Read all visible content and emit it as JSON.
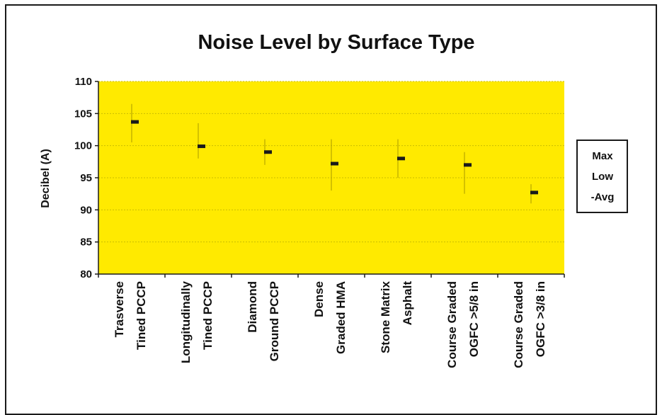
{
  "chart_data": {
    "type": "stock",
    "title": "Noise Level by Surface Type",
    "ylabel": "Decibel (A)",
    "xlabel": "",
    "ylim": [
      80,
      110
    ],
    "yticks": [
      80,
      85,
      90,
      95,
      100,
      105,
      110
    ],
    "grid": true,
    "legend_position": "right",
    "legend": [
      "Max",
      "Low",
      "-Avg"
    ],
    "colors": {
      "plot_background": "#ffea00",
      "range_line": "#b8a800",
      "avg_mark": "#1a1a1a",
      "grid": "#c9bc00"
    },
    "categories": [
      {
        "lines": [
          "Trasverse",
          "Tined PCCP"
        ],
        "max": 106.5,
        "low": 100.5,
        "avg": 103.7
      },
      {
        "lines": [
          "Longitudinally",
          "Tined PCCP"
        ],
        "max": 103.5,
        "low": 98.0,
        "avg": 99.9
      },
      {
        "lines": [
          "Diamond",
          "Ground PCCP"
        ],
        "max": 101.0,
        "low": 97.0,
        "avg": 99.0
      },
      {
        "lines": [
          "Dense",
          "Graded HMA"
        ],
        "max": 101.0,
        "low": 93.0,
        "avg": 97.2
      },
      {
        "lines": [
          "Stone Matrix",
          "Asphalt"
        ],
        "max": 101.0,
        "low": 95.0,
        "avg": 98.0
      },
      {
        "lines": [
          "Course Graded",
          "OGFC >5/8 in"
        ],
        "max": 99.0,
        "low": 92.5,
        "avg": 97.0
      },
      {
        "lines": [
          "Course Graded",
          "OGFC >3/8 in"
        ],
        "max": 94.0,
        "low": 91.0,
        "avg": 92.7
      }
    ]
  }
}
